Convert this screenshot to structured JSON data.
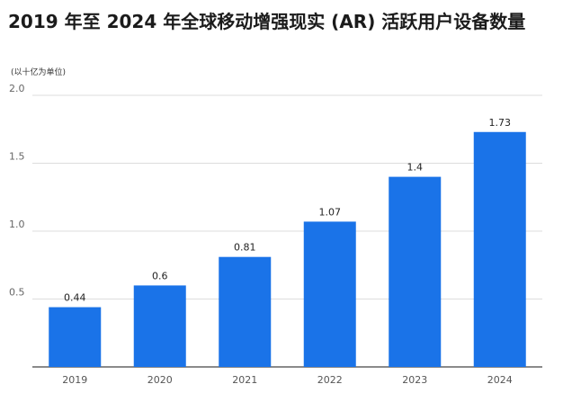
{
  "chart_data": {
    "type": "bar",
    "title": "2019 年至 2024 年全球移动增强现实 (AR) 活跃用户设备数量",
    "unit_note": "(以十亿为单位)",
    "xlabel": "",
    "ylabel": "",
    "categories": [
      "2019",
      "2020",
      "2021",
      "2022",
      "2023",
      "2024"
    ],
    "values": [
      0.44,
      0.6,
      0.81,
      1.07,
      1.4,
      1.73
    ],
    "value_labels": [
      "0.44",
      "0.6",
      "0.81",
      "1.07",
      "1.4",
      "1.73"
    ],
    "ylim": [
      0,
      2.0
    ],
    "yticks": [
      0.5,
      1.0,
      1.5,
      2.0
    ],
    "ytick_labels": [
      "0.5",
      "1.0",
      "1.5",
      "2.0"
    ],
    "grid": true,
    "legend": "none",
    "bar_color": "#1a73e8",
    "grid_color": "#dddddd",
    "axis_color": "#444444",
    "text_color": "#333333"
  }
}
